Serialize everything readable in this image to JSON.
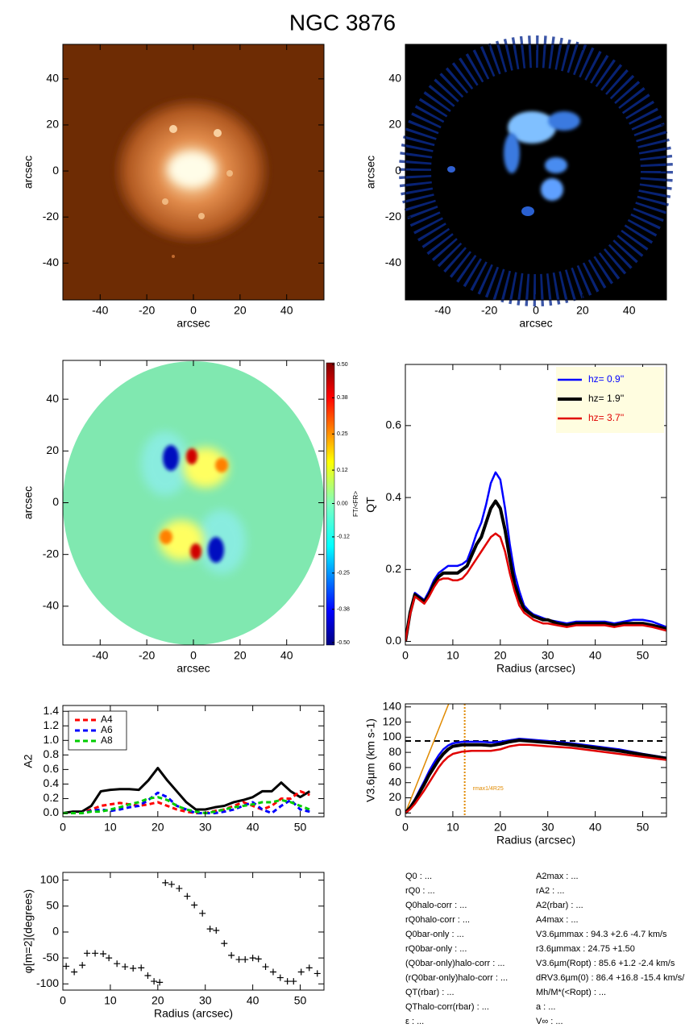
{
  "title": "NGC 3876",
  "chart_data": [
    {
      "type": "image",
      "xlabel": "arcsec",
      "ylabel": "arcsec",
      "xlim": [
        -56,
        56
      ],
      "ylim": [
        -56,
        55
      ],
      "xticks": [
        -40,
        -20,
        0,
        20,
        40
      ],
      "yticks": [
        -40,
        -20,
        0,
        20,
        40
      ]
    },
    {
      "type": "image",
      "xlabel": "arcsec",
      "ylabel": "arcsec",
      "xlim": [
        -56,
        56
      ],
      "ylim": [
        -56,
        55
      ],
      "xticks": [
        -40,
        -20,
        0,
        20,
        40
      ],
      "yticks": [
        -40,
        -20,
        0,
        20,
        40
      ]
    },
    {
      "type": "image",
      "xlabel": "arcsec",
      "ylabel": "arcsec",
      "xlim": [
        -56,
        56
      ],
      "ylim": [
        -55,
        55
      ],
      "xticks": [
        -40,
        -20,
        0,
        20,
        40
      ],
      "yticks": [
        -40,
        -20,
        0,
        20,
        40
      ],
      "colorbar": {
        "label": "FT/<FR>",
        "lim": [
          -0.5,
          0.5
        ],
        "ticks": [
          {
            "value": 0.5,
            "label": "0.50"
          },
          0.38,
          0.25,
          0.12,
          {
            "value": 0,
            "label": "0.00"
          },
          -0.12,
          -0.25,
          -0.38,
          {
            "value": -0.5,
            "label": "-0.50"
          }
        ]
      }
    },
    {
      "type": "line",
      "xlabel": "Radius (arcsec)",
      "ylabel": "QT",
      "xlim": [
        0,
        55
      ],
      "ylim": [
        -0.01,
        0.77
      ],
      "xticks": [
        0,
        10,
        20,
        30,
        40,
        50
      ],
      "yticks": [
        {
          "value": 0,
          "label": "0.0"
        },
        0.2,
        0.4,
        0.6
      ],
      "legend": "upper right",
      "x": [
        0,
        1,
        2,
        3,
        4,
        5,
        6,
        7,
        8,
        9,
        10,
        11,
        12,
        13,
        14,
        15,
        16,
        17,
        18,
        19,
        20,
        21,
        22,
        23,
        24,
        25,
        26,
        27,
        28,
        29,
        30,
        32,
        34,
        36,
        38,
        40,
        42,
        44,
        46,
        48,
        50,
        52,
        55
      ],
      "series": [
        {
          "name": "hz= 0.9''",
          "color": "#0000ff",
          "linewidth": 2.5,
          "values": [
            0,
            0.085,
            0.135,
            0.125,
            0.115,
            0.14,
            0.17,
            0.19,
            0.2,
            0.21,
            0.21,
            0.21,
            0.215,
            0.225,
            0.26,
            0.3,
            0.33,
            0.38,
            0.44,
            0.47,
            0.45,
            0.37,
            0.27,
            0.19,
            0.14,
            0.1,
            0.085,
            0.075,
            0.07,
            0.065,
            0.06,
            0.055,
            0.05,
            0.055,
            0.055,
            0.055,
            0.055,
            0.05,
            0.055,
            0.06,
            0.06,
            0.055,
            0.04
          ]
        },
        {
          "name": "hz= 1.9''",
          "color": "#000000",
          "linewidth": 4,
          "values": [
            0,
            0.08,
            0.13,
            0.12,
            0.11,
            0.13,
            0.16,
            0.18,
            0.19,
            0.19,
            0.19,
            0.19,
            0.2,
            0.21,
            0.24,
            0.27,
            0.29,
            0.33,
            0.37,
            0.39,
            0.37,
            0.31,
            0.23,
            0.16,
            0.12,
            0.09,
            0.08,
            0.07,
            0.065,
            0.06,
            0.06,
            0.05,
            0.045,
            0.05,
            0.05,
            0.05,
            0.05,
            0.045,
            0.05,
            0.05,
            0.05,
            0.045,
            0.035
          ]
        },
        {
          "name": "hz= 3.7''",
          "color": "#e00000",
          "linewidth": 2.5,
          "values": [
            0,
            0.075,
            0.125,
            0.115,
            0.105,
            0.125,
            0.15,
            0.17,
            0.175,
            0.175,
            0.17,
            0.17,
            0.175,
            0.19,
            0.21,
            0.23,
            0.25,
            0.27,
            0.29,
            0.3,
            0.29,
            0.25,
            0.19,
            0.14,
            0.1,
            0.08,
            0.07,
            0.06,
            0.055,
            0.05,
            0.05,
            0.045,
            0.04,
            0.045,
            0.045,
            0.045,
            0.045,
            0.04,
            0.045,
            0.045,
            0.045,
            0.04,
            0.03
          ]
        }
      ]
    },
    {
      "type": "line",
      "ylabel": "A2",
      "xlim": [
        0,
        55
      ],
      "ylim": [
        -0.05,
        1.48
      ],
      "xticks": [
        0,
        10,
        20,
        30,
        40,
        50
      ],
      "yticks": [
        {
          "value": 0,
          "label": "0.0"
        },
        0.2,
        0.4,
        0.6,
        0.8,
        {
          "value": 1,
          "label": "1.0"
        },
        1.2,
        1.4
      ],
      "legend": "upper left",
      "x": [
        0,
        2,
        4,
        6,
        8,
        10,
        12,
        14,
        16,
        18,
        20,
        22,
        24,
        26,
        28,
        30,
        32,
        34,
        36,
        38,
        40,
        42,
        44,
        46,
        48,
        50,
        52
      ],
      "series": [
        {
          "color": "#000000",
          "linewidth": 3,
          "values": [
            0,
            0.02,
            0.02,
            0.1,
            0.3,
            0.32,
            0.33,
            0.33,
            0.32,
            0.45,
            0.62,
            0.45,
            0.3,
            0.15,
            0.05,
            0.05,
            0.08,
            0.1,
            0.15,
            0.18,
            0.22,
            0.3,
            0.3,
            0.42,
            0.3,
            0.22,
            0.3
          ]
        },
        {
          "name": "A4",
          "color": "#ff0000",
          "linewidth": 3,
          "dash": true,
          "values": [
            0,
            0,
            0,
            0.05,
            0.1,
            0.12,
            0.14,
            0.12,
            0.1,
            0.12,
            0.15,
            0.1,
            0.05,
            0.02,
            0,
            0,
            0.03,
            0.05,
            0.1,
            0.15,
            0.1,
            0.05,
            0.1,
            0.2,
            0.2,
            0.3,
            0.25
          ]
        },
        {
          "name": "A6",
          "color": "#0000ff",
          "linewidth": 3,
          "dash": true,
          "values": [
            0,
            0,
            0,
            0.03,
            0.05,
            0.03,
            0.05,
            0.08,
            0.1,
            0.18,
            0.28,
            0.22,
            0.1,
            0.05,
            0,
            0,
            0,
            0.02,
            0.05,
            0.1,
            0.15,
            0.05,
            0,
            0.1,
            0.18,
            0.05,
            0.02
          ]
        },
        {
          "name": "A8",
          "color": "#00cc00",
          "linewidth": 3,
          "dash": true,
          "values": [
            0,
            0,
            0,
            0.02,
            0.02,
            0.05,
            0.08,
            0.12,
            0.15,
            0.2,
            0.22,
            0.18,
            0.1,
            0.05,
            0.02,
            0,
            0.02,
            0.05,
            0.08,
            0.1,
            0.12,
            0.15,
            0.15,
            0.18,
            0.15,
            0.1,
            0.05
          ]
        }
      ]
    },
    {
      "type": "line",
      "xlabel": "Radius (arcsec)",
      "ylabel": "V3.6µm (km s-1)",
      "xlim": [
        0,
        55
      ],
      "ylim": [
        -5,
        144
      ],
      "xticks": [
        0,
        10,
        20,
        30,
        40,
        50
      ],
      "yticks": [
        0,
        20,
        40,
        60,
        80,
        100,
        120,
        140
      ],
      "x": [
        0,
        1,
        2,
        3,
        4,
        5,
        6,
        7,
        8,
        9,
        10,
        12,
        14,
        16,
        18,
        20,
        22,
        24,
        26,
        28,
        30,
        35,
        40,
        45,
        50,
        55
      ],
      "hline": {
        "value": 95,
        "color": "#000000"
      },
      "vline": {
        "value": 12.5,
        "color": "#e08a00",
        "label": "rmax1/4R25"
      },
      "series": [
        {
          "color": "#e08a00",
          "linewidth": 1.5,
          "x": [
            0,
            9.5
          ],
          "values": [
            0,
            150
          ]
        },
        {
          "color": "#0000ff",
          "linewidth": 2.5,
          "values": [
            0,
            8,
            18,
            30,
            42,
            55,
            66,
            76,
            84,
            89,
            92,
            94,
            94,
            94,
            93,
            94,
            96,
            98,
            97,
            96,
            95,
            92,
            88,
            84,
            78,
            73
          ]
        },
        {
          "color": "#000000",
          "linewidth": 4,
          "values": [
            0,
            7,
            16,
            27,
            38,
            50,
            60,
            70,
            78,
            84,
            88,
            90,
            90,
            90,
            89,
            91,
            94,
            96,
            95,
            94,
            93,
            90,
            86,
            82,
            77,
            72
          ]
        },
        {
          "color": "#e00000",
          "linewidth": 2.5,
          "values": [
            0,
            5,
            12,
            21,
            30,
            40,
            50,
            60,
            68,
            74,
            78,
            81,
            82,
            82,
            82,
            84,
            88,
            90,
            90,
            89,
            88,
            86,
            82,
            78,
            74,
            70
          ]
        }
      ]
    },
    {
      "type": "scatter",
      "xlabel": "Radius (arcsec)",
      "ylabel": "φ[m=2](degrees)",
      "xlim": [
        0,
        55
      ],
      "ylim": [
        -112,
        115
      ],
      "xticks": [
        0,
        10,
        20,
        30,
        40,
        50
      ],
      "yticks": [
        -100,
        -50,
        0,
        50,
        100
      ],
      "color": "#000000",
      "x": [
        0.7,
        2.4,
        4.1,
        5.1,
        6.8,
        8.5,
        9.7,
        11.4,
        13.1,
        14.8,
        16.5,
        17.9,
        19.2,
        20.4,
        21.6,
        22.9,
        24.5,
        26.2,
        27.7,
        29.4,
        31,
        32.3,
        34,
        35.5,
        37.1,
        38.4,
        40,
        41.2,
        42.7,
        44.3,
        45.8,
        47.3,
        48.6,
        50.2,
        51.9,
        53.6
      ],
      "values": [
        -66,
        -77,
        -64,
        -41,
        -41,
        -42,
        -50,
        -61,
        -67,
        -70,
        -69,
        -84,
        -95,
        -97,
        95,
        92,
        84,
        69,
        52,
        36,
        6,
        3,
        -22,
        -45,
        -53,
        -53,
        -50,
        -52,
        -67,
        -77,
        -88,
        -95,
        -95,
        -77,
        -69,
        -80
      ]
    }
  ],
  "parameters": {
    "left": [
      "Q0 : ...",
      "rQ0 : ...",
      "Q0halo-corr : ...",
      "rQ0halo-corr : ...",
      "Q0bar-only : ...",
      "rQ0bar-only : ...",
      "(Q0bar-only)halo-corr : ...",
      "(rQ0bar-only)halo-corr : ...",
      "QT(rbar) : ...",
      "QThalo-corr(rbar) : ...",
      "ε : ..."
    ],
    "right": [
      "A2max : ...",
      "rA2 : ...",
      "A2(rbar) : ...",
      "A4max : ...",
      "V3.6µmmax :  94.3 +2.6 -4.7 km/s",
      "r3.6µmmax :  24.75 +1.50",
      "V3.6µm(Ropt) :  85.6 +1.2 -2.4 km/s",
      "dRV3.6µm(0) :  86.4 +16.8 -15.4 km/s/kpc",
      "Mh/M*(<Ropt) : ...",
      "a : ...",
      "V∞ : ..."
    ]
  }
}
